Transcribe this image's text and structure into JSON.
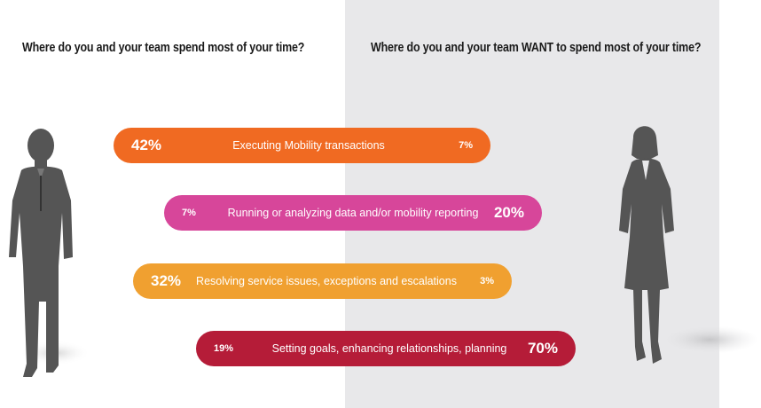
{
  "titles": {
    "current": "Where do you and your team spend most of your time?",
    "desired": "Where do you and your team WANT to spend most of your time?"
  },
  "colors": {
    "panel": "#e8e8ea",
    "silhouette": "#555555",
    "executing": "#f06a22",
    "running": "#d7469a",
    "resolving": "#f0a030",
    "setting": "#b51c38"
  },
  "icons": [
    "man-silhouette-icon",
    "woman-silhouette-icon"
  ],
  "chart_data": {
    "type": "bar",
    "series": [
      {
        "name": "Where do you and your team spend most of your time?",
        "values": [
          42,
          7,
          32,
          19
        ]
      },
      {
        "name": "Where do you and your team WANT to spend most of your time?",
        "values": [
          7,
          20,
          3,
          70
        ]
      }
    ],
    "categories": [
      "Executing Mobility transactions",
      "Running or analyzing data and/or mobility reporting",
      "Resolving service issues, exceptions and escalations",
      "Setting goals, enhancing relationships, planning"
    ],
    "rows": [
      {
        "label": "Executing Mobility transactions",
        "current": "42%",
        "desired": "7%"
      },
      {
        "label": "Running or analyzing data and/or mobility reporting",
        "current": "7%",
        "desired": "20%"
      },
      {
        "label": "Resolving service issues, exceptions and escalations",
        "current": "32%",
        "desired": "3%"
      },
      {
        "label": "Setting goals, enhancing relationships, planning",
        "current": "19%",
        "desired": "70%"
      }
    ]
  }
}
